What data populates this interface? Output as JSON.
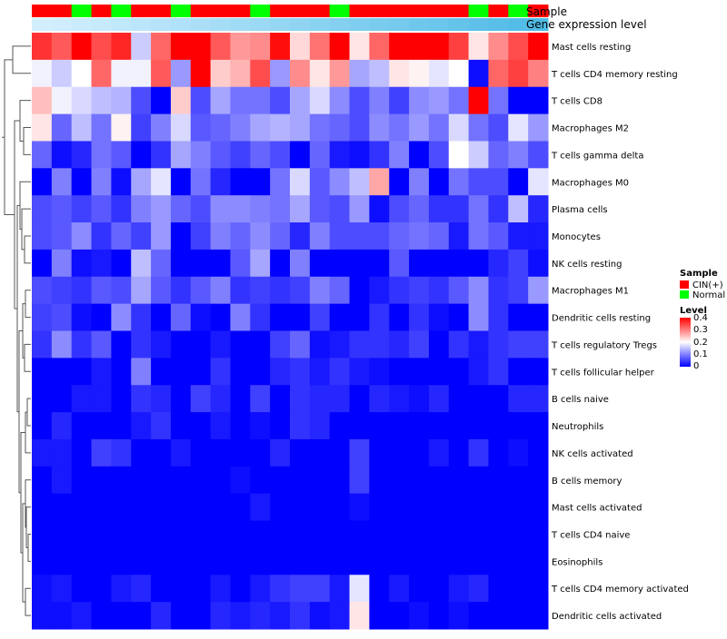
{
  "chart_data": {
    "type": "heatmap",
    "title": "",
    "annotation_tracks": [
      "Sample",
      "Gene expression level"
    ],
    "samples": [
      "CIN(+)",
      "CIN(+)",
      "Normal",
      "CIN(+)",
      "Normal",
      "CIN(+)",
      "CIN(+)",
      "Normal",
      "CIN(+)",
      "CIN(+)",
      "CIN(+)",
      "Normal",
      "CIN(+)",
      "CIN(+)",
      "CIN(+)",
      "Normal",
      "CIN(+)",
      "CIN(+)",
      "CIN(+)",
      "CIN(+)",
      "CIN(+)",
      "CIN(+)",
      "Normal",
      "CIN(+)",
      "Normal",
      "CIN(+)"
    ],
    "gene_expression_level": [
      0.02,
      0.05,
      0.08,
      0.12,
      0.16,
      0.2,
      0.24,
      0.28,
      0.32,
      0.36,
      0.4,
      0.44,
      0.48,
      0.52,
      0.56,
      0.6,
      0.64,
      0.68,
      0.72,
      0.76,
      0.8,
      0.84,
      0.88,
      0.92,
      0.96,
      1.0
    ],
    "rows": [
      "Mast cells resting",
      "T cells CD4 memory resting",
      "T cells CD8",
      "Macrophages M2",
      "T cells gamma delta",
      "Macrophages M0",
      "Plasma cells",
      "Monocytes",
      "NK cells resting",
      "Macrophages M1",
      "Dendritic cells resting",
      "T cells regulatory  Tregs",
      "T cells follicular helper",
      "B cells naive",
      "Neutrophils",
      "NK cells activated",
      "B cells memory",
      "Mast cells activated",
      "T cells CD4 naive",
      "Eosinophils",
      "T cells CD4 memory activated",
      "Dendritic cells activated"
    ],
    "values": [
      [
        0.36,
        0.33,
        0.4,
        0.34,
        0.37,
        0.16,
        0.32,
        0.4,
        0.4,
        0.33,
        0.28,
        0.29,
        0.39,
        0.23,
        0.31,
        0.4,
        0.22,
        0.32,
        0.4,
        0.4,
        0.4,
        0.35,
        0.22,
        0.29,
        0.34,
        0.4
      ],
      [
        0.19,
        0.16,
        0.2,
        0.32,
        0.19,
        0.19,
        0.33,
        0.12,
        0.4,
        0.24,
        0.26,
        0.34,
        0.12,
        0.29,
        0.22,
        0.28,
        0.13,
        0.15,
        0.22,
        0.21,
        0.18,
        0.2,
        0.01,
        0.32,
        0.35,
        0.3
      ],
      [
        0.25,
        0.19,
        0.17,
        0.15,
        0.14,
        0.06,
        0.0,
        0.24,
        0.06,
        0.13,
        0.09,
        0.09,
        0.06,
        0.13,
        0.17,
        0.11,
        0.06,
        0.1,
        0.05,
        0.11,
        0.12,
        0.09,
        0.4,
        0.09,
        0.0,
        0.0
      ],
      [
        0.22,
        0.08,
        0.15,
        0.09,
        0.21,
        0.05,
        0.1,
        0.17,
        0.07,
        0.08,
        0.1,
        0.13,
        0.14,
        0.13,
        0.09,
        0.08,
        0.06,
        0.11,
        0.09,
        0.12,
        0.09,
        0.17,
        0.09,
        0.06,
        0.18,
        0.12
      ],
      [
        0.08,
        0.01,
        0.03,
        0.09,
        0.07,
        0.0,
        0.04,
        0.13,
        0.1,
        0.07,
        0.05,
        0.08,
        0.06,
        0.0,
        0.08,
        0.02,
        0.01,
        0.04,
        0.1,
        0.0,
        0.06,
        0.2,
        0.16,
        0.08,
        0.1,
        0.06
      ],
      [
        0.0,
        0.1,
        0.0,
        0.1,
        0.01,
        0.13,
        0.18,
        0.0,
        0.09,
        0.03,
        0.0,
        0.0,
        0.09,
        0.17,
        0.07,
        0.11,
        0.15,
        0.27,
        0.0,
        0.1,
        0.0,
        0.09,
        0.06,
        0.06,
        0.0,
        0.18
      ],
      [
        0.06,
        0.07,
        0.05,
        0.07,
        0.04,
        0.1,
        0.12,
        0.08,
        0.06,
        0.11,
        0.11,
        0.1,
        0.09,
        0.13,
        0.07,
        0.06,
        0.12,
        0.01,
        0.06,
        0.08,
        0.04,
        0.04,
        0.09,
        0.04,
        0.15,
        0.03
      ],
      [
        0.06,
        0.07,
        0.11,
        0.04,
        0.08,
        0.05,
        0.12,
        0.0,
        0.05,
        0.1,
        0.08,
        0.11,
        0.08,
        0.03,
        0.1,
        0.06,
        0.06,
        0.06,
        0.08,
        0.09,
        0.08,
        0.02,
        0.09,
        0.07,
        0.02,
        0.02
      ],
      [
        0.0,
        0.1,
        0.01,
        0.02,
        0.0,
        0.15,
        0.08,
        0.0,
        0.0,
        0.0,
        0.07,
        0.13,
        0.0,
        0.1,
        0.0,
        0.0,
        0.0,
        0.0,
        0.07,
        0.0,
        0.0,
        0.0,
        0.0,
        0.03,
        0.05,
        0.01
      ],
      [
        0.06,
        0.05,
        0.04,
        0.07,
        0.06,
        0.13,
        0.07,
        0.04,
        0.07,
        0.1,
        0.04,
        0.05,
        0.04,
        0.05,
        0.1,
        0.08,
        0.0,
        0.02,
        0.04,
        0.05,
        0.04,
        0.07,
        0.11,
        0.04,
        0.05,
        0.12
      ],
      [
        0.05,
        0.06,
        0.01,
        0.0,
        0.11,
        0.04,
        0.0,
        0.08,
        0.01,
        0.0,
        0.1,
        0.04,
        0.0,
        0.0,
        0.05,
        0.0,
        0.0,
        0.04,
        0.0,
        0.04,
        0.01,
        0.0,
        0.11,
        0.04,
        0.0,
        0.0
      ],
      [
        0.04,
        0.11,
        0.04,
        0.07,
        0.0,
        0.04,
        0.02,
        0.0,
        0.0,
        0.02,
        0.0,
        0.0,
        0.05,
        0.08,
        0.01,
        0.02,
        0.04,
        0.04,
        0.03,
        0.05,
        0.0,
        0.04,
        0.02,
        0.04,
        0.05,
        0.05
      ],
      [
        0.0,
        0.0,
        0.0,
        0.02,
        0.0,
        0.1,
        0.0,
        0.0,
        0.0,
        0.04,
        0.0,
        0.0,
        0.03,
        0.04,
        0.02,
        0.04,
        0.02,
        0.01,
        0.0,
        0.0,
        0.0,
        0.0,
        0.02,
        0.04,
        0.0,
        0.0
      ],
      [
        0.0,
        0.0,
        0.02,
        0.02,
        0.0,
        0.04,
        0.03,
        0.0,
        0.05,
        0.03,
        0.0,
        0.05,
        0.0,
        0.04,
        0.03,
        0.03,
        0.0,
        0.03,
        0.02,
        0.01,
        0.03,
        0.0,
        0.0,
        0.0,
        0.03,
        0.03
      ],
      [
        0.0,
        0.03,
        0.0,
        0.0,
        0.0,
        0.02,
        0.04,
        0.0,
        0.0,
        0.02,
        0.0,
        0.01,
        0.0,
        0.04,
        0.03,
        0.0,
        0.0,
        0.0,
        0.0,
        0.0,
        0.0,
        0.0,
        0.0,
        0.0,
        0.0,
        0.0
      ],
      [
        0.02,
        0.02,
        0.0,
        0.05,
        0.04,
        0.0,
        0.0,
        0.02,
        0.0,
        0.0,
        0.0,
        0.0,
        0.03,
        0.0,
        0.0,
        0.0,
        0.05,
        0.0,
        0.0,
        0.0,
        0.02,
        0.0,
        0.04,
        0.0,
        0.01,
        0.0
      ],
      [
        0.0,
        0.02,
        0.0,
        0.0,
        0.0,
        0.0,
        0.0,
        0.0,
        0.0,
        0.0,
        0.01,
        0.0,
        0.0,
        0.0,
        0.0,
        0.0,
        0.05,
        0.0,
        0.0,
        0.0,
        0.0,
        0.0,
        0.0,
        0.0,
        0.0,
        0.0
      ],
      [
        0.0,
        0.0,
        0.0,
        0.0,
        0.0,
        0.0,
        0.0,
        0.0,
        0.0,
        0.0,
        0.0,
        0.02,
        0.0,
        0.0,
        0.0,
        0.0,
        0.01,
        0.0,
        0.0,
        0.0,
        0.0,
        0.0,
        0.0,
        0.0,
        0.0,
        0.0
      ],
      [
        0.0,
        0.0,
        0.0,
        0.0,
        0.0,
        0.0,
        0.0,
        0.0,
        0.0,
        0.0,
        0.0,
        0.0,
        0.0,
        0.0,
        0.0,
        0.0,
        0.0,
        0.0,
        0.0,
        0.0,
        0.0,
        0.0,
        0.0,
        0.0,
        0.0,
        0.0
      ],
      [
        0.0,
        0.0,
        0.0,
        0.0,
        0.0,
        0.0,
        0.0,
        0.0,
        0.0,
        0.0,
        0.0,
        0.0,
        0.0,
        0.0,
        0.0,
        0.0,
        0.0,
        0.0,
        0.0,
        0.0,
        0.0,
        0.0,
        0.0,
        0.0,
        0.0,
        0.0
      ],
      [
        0.01,
        0.02,
        0.0,
        0.0,
        0.02,
        0.03,
        0.0,
        0.0,
        0.0,
        0.02,
        0.0,
        0.02,
        0.04,
        0.05,
        0.05,
        0.02,
        0.18,
        0.0,
        0.02,
        0.0,
        0.0,
        0.02,
        0.03,
        0.0,
        0.0,
        0.0
      ],
      [
        0.01,
        0.01,
        0.02,
        0.0,
        0.0,
        0.0,
        0.03,
        0.0,
        0.0,
        0.03,
        0.02,
        0.03,
        0.02,
        0.04,
        0.01,
        0.02,
        0.22,
        0.0,
        0.0,
        0.01,
        0.0,
        0.01,
        0.0,
        0.0,
        0.0,
        0.0
      ]
    ],
    "legend": {
      "sample": {
        "title": "Sample",
        "entries": [
          "CIN(+)",
          "Normal"
        ]
      },
      "level": {
        "title": "Level",
        "ticks": [
          "0.4",
          "0.3",
          "0.2",
          "0.1",
          "0"
        ],
        "range": [
          0,
          0.4
        ]
      }
    },
    "colors": {
      "cin": "#ff0000",
      "normal": "#00ff00",
      "gene_expression_level_low": "#d6f0ff",
      "gene_expression_level_high": "#4fbbe6",
      "scale_low": "#0000ff",
      "scale_mid": "#ffffff",
      "scale_high": "#ff0000",
      "dendrogram": "#555555"
    }
  }
}
